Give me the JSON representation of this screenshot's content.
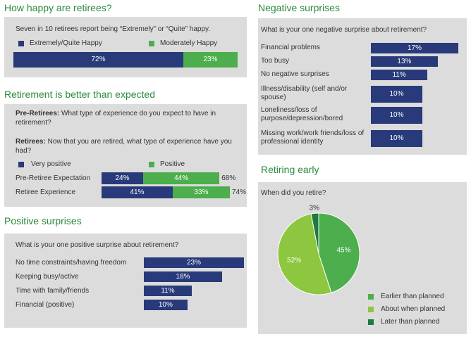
{
  "happy": {
    "title": "How happy are retirees?",
    "subtitle": "Seven in 10 retirees report being “Extremely” or “Quite” happy.",
    "legend": [
      "Extremely/Quite Happy",
      "Moderately Happy"
    ]
  },
  "better": {
    "title": "Retirement is better than expected",
    "q1_bold": "Pre-Retirees:",
    "q1_text": " What type of experience do you expect to have in retirement?",
    "q2_bold": "Retirees:",
    "q2_text": " Now that you are retired, what type of experience have you had?",
    "legend": [
      "Very positive",
      "Positive"
    ]
  },
  "positive": {
    "title": "Positive surprises",
    "question": "What is your one positive surprise about retirement?"
  },
  "negative": {
    "title": "Negative surprises",
    "question": "What is your one negative surprise about retirement?"
  },
  "early": {
    "title": "Retiring early",
    "question": "When did you retire?"
  },
  "chart_data": [
    {
      "type": "bar",
      "orientation": "horizontal-stacked",
      "categories": [
        ""
      ],
      "series": [
        {
          "name": "Extremely/Quite Happy",
          "values": [
            72
          ],
          "labels": [
            "72%"
          ],
          "color": "#283a7a"
        },
        {
          "name": "Moderately Happy",
          "values": [
            23
          ],
          "labels": [
            "23%"
          ],
          "color": "#4cae4c"
        }
      ],
      "xlim": [
        0,
        95
      ]
    },
    {
      "type": "bar",
      "orientation": "horizontal-stacked",
      "categories": [
        "Pre-Retiree Expectation",
        "Retiree Experience"
      ],
      "series": [
        {
          "name": "Very positive",
          "values": [
            24,
            41
          ],
          "labels": [
            "24%",
            "41%"
          ],
          "color": "#283a7a"
        },
        {
          "name": "Positive",
          "values": [
            44,
            33
          ],
          "labels": [
            "44%",
            "33%"
          ],
          "color": "#4cae4c"
        }
      ],
      "totals": [
        "68%",
        "74%"
      ],
      "xlim": [
        0,
        74
      ]
    },
    {
      "type": "bar",
      "orientation": "horizontal",
      "categories": [
        "No time constraints/having freedom",
        "Keeping busy/active",
        "Time with family/friends",
        "Financial (positive)"
      ],
      "values": [
        23,
        18,
        11,
        10
      ],
      "labels": [
        "23%",
        "18%",
        "11%",
        "10%"
      ],
      "color": "#283a7a",
      "xlim": [
        0,
        23
      ]
    },
    {
      "type": "bar",
      "orientation": "horizontal",
      "categories": [
        "Financial problems",
        "Too busy",
        "No negative surprises",
        "Illness/disability (self and/or spouse)",
        "Loneliness/loss of purpose/depression/bored",
        "Missing work/work friends/loss of professional identity"
      ],
      "values": [
        17,
        13,
        11,
        10,
        10,
        10
      ],
      "labels": [
        "17%",
        "13%",
        "11%",
        "10%",
        "10%",
        "10%"
      ],
      "color": "#283a7a",
      "xlim": [
        0,
        17
      ]
    },
    {
      "type": "pie",
      "categories": [
        "Earlier than planned",
        "About when planned",
        "Later than planned"
      ],
      "values": [
        45,
        52,
        3
      ],
      "labels": [
        "45%",
        "52%",
        "3%"
      ],
      "colors": [
        "#4cae4c",
        "#8dc63f",
        "#1e7a3e"
      ]
    }
  ]
}
